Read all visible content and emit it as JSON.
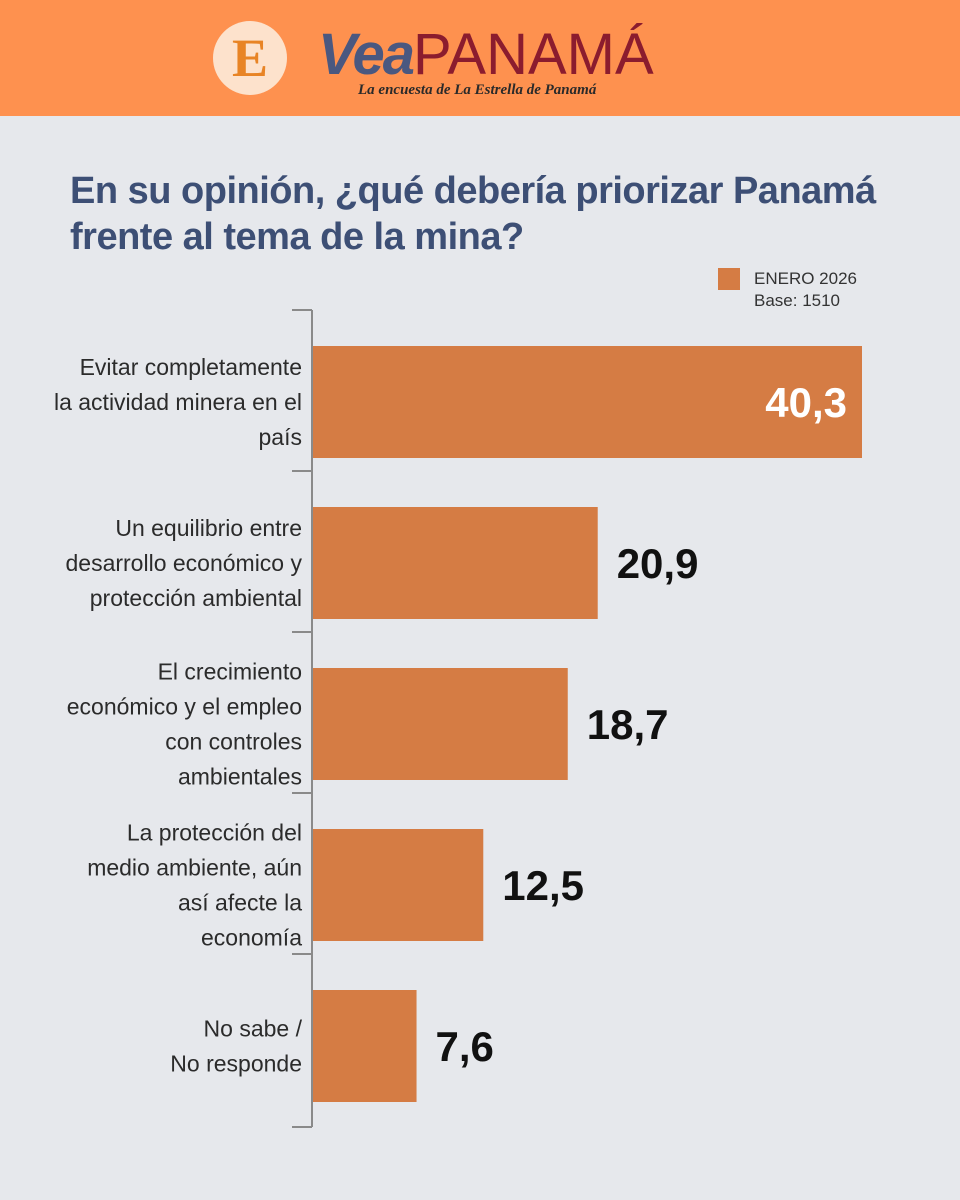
{
  "header": {
    "logo_letter": "E",
    "brand_vea": "Vea",
    "brand_panama": "PANAMÁ",
    "tagline": "La encuesta de La Estrella de Panamá"
  },
  "colors": {
    "header_bg": "#fe914f",
    "logo_circle": "#fde2cc",
    "logo_letter": "#e88425",
    "brand_vea": "#4a5880",
    "brand_panama": "#8b1c2e",
    "title": "#3d4f75",
    "bar": "#d57c44",
    "axis": "#8a8a8a"
  },
  "chart_data": {
    "type": "bar",
    "orientation": "horizontal",
    "title": "En su opinión, ¿qué debería priorizar Panamá frente al tema de la mina?",
    "legend": {
      "series_name": "ENERO 2026",
      "note": "Base: 1510",
      "placement": "top-right"
    },
    "categories": [
      [
        "Evitar completamente",
        "la actividad minera en el",
        "país"
      ],
      [
        "Un equilibrio entre",
        "desarrollo económico y",
        "protección ambiental"
      ],
      [
        "El crecimiento",
        "económico y el empleo",
        "con controles",
        "ambientales"
      ],
      [
        "La protección del",
        "medio ambiente, aún",
        "así afecte la",
        "economía"
      ],
      [
        "No sabe /",
        "No responde"
      ]
    ],
    "values": [
      40.3,
      20.9,
      18.7,
      12.5,
      7.6
    ],
    "value_labels": [
      "40,3",
      "20,9",
      "18,7",
      "12,5",
      "7,6"
    ],
    "xlim": [
      0,
      40.3
    ],
    "grid": false
  }
}
